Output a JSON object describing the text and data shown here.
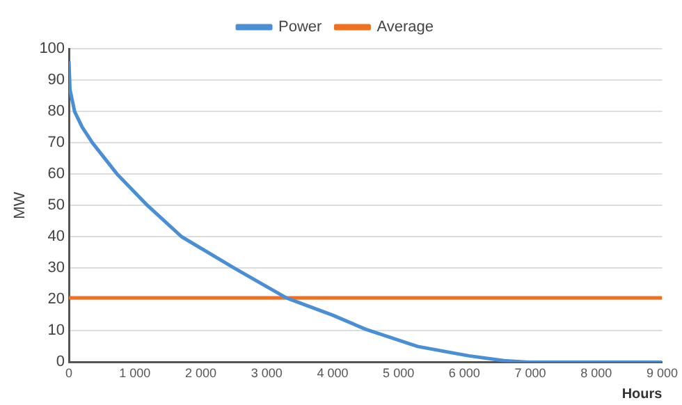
{
  "chart_data": {
    "type": "line",
    "xlabel": "Hours",
    "ylabel": "MW",
    "xlim": [
      0,
      9000
    ],
    "ylim": [
      0,
      100
    ],
    "xticks": [
      0,
      {
        "value": 1000,
        "label": "1 000"
      },
      {
        "value": 2000,
        "label": "2 000"
      },
      {
        "value": 3000,
        "label": "3 000"
      },
      {
        "value": 4000,
        "label": "4 000"
      },
      {
        "value": 5000,
        "label": "5 000"
      },
      {
        "value": 6000,
        "label": "6 000"
      },
      {
        "value": 7000,
        "label": "7 000"
      },
      {
        "value": 8000,
        "label": "8 000"
      },
      {
        "value": 9000,
        "label": "9 000"
      }
    ],
    "yticks": [
      0,
      10,
      20,
      30,
      40,
      50,
      60,
      70,
      80,
      90,
      100
    ],
    "grid": "y",
    "legend": "top",
    "marker": "none",
    "line_style": "solid",
    "series": [
      {
        "name": "Power",
        "color": "#4a8fd6",
        "x": [
          0,
          15,
          85,
          200,
          355,
          730,
          1190,
          1710,
          2510,
          3300,
          4000,
          4500,
          5290,
          6070,
          6600,
          6970,
          9000
        ],
        "values": [
          96,
          87,
          80,
          75,
          70,
          60,
          50,
          40,
          30,
          20.5,
          15,
          10.5,
          5,
          2,
          0.5,
          0,
          0
        ]
      },
      {
        "name": "Average",
        "color": "#f07020",
        "x": [
          0,
          9000
        ],
        "values": [
          20.5,
          20.5
        ]
      }
    ]
  }
}
